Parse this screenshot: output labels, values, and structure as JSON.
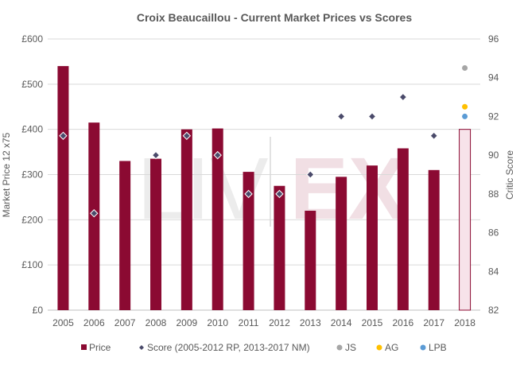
{
  "watermark": "LIV|EX",
  "chart_data": {
    "type": "bar",
    "title": "Croix Beaucaillou - Current Market Prices vs Scores",
    "ylabel": "Market Price 12 x75",
    "y2label": "Critic Score",
    "categories": [
      "2005",
      "2006",
      "2007",
      "2008",
      "2009",
      "2010",
      "2011",
      "2012",
      "2013",
      "2014",
      "2015",
      "2016",
      "2017",
      "2018"
    ],
    "ylim": [
      0,
      600
    ],
    "y2lim": [
      82,
      96
    ],
    "yticks": [
      0,
      100,
      200,
      300,
      400,
      500,
      600
    ],
    "ytick_labels": [
      "£0",
      "£100",
      "£200",
      "£300",
      "£400",
      "£500",
      "£600"
    ],
    "y2ticks": [
      82,
      84,
      86,
      88,
      90,
      92,
      94,
      96
    ],
    "ytick2_labels": [
      "82",
      "84",
      "86",
      "88",
      "90",
      "92",
      "94",
      "96"
    ],
    "grid": true,
    "legend_position": "bottom",
    "series": [
      {
        "name": "Price",
        "kind": "bar",
        "axis": "left",
        "color": "#8b0a32",
        "values": [
          540,
          415,
          330,
          335,
          400,
          402,
          306,
          275,
          220,
          295,
          320,
          358,
          310,
          null
        ]
      },
      {
        "name": "Price (2018)",
        "kind": "bar-outline",
        "axis": "left",
        "color": "#8b0a32",
        "fill": "#f7e3ea",
        "values": [
          null,
          null,
          null,
          null,
          null,
          null,
          null,
          null,
          null,
          null,
          null,
          null,
          null,
          400
        ]
      },
      {
        "name": "Score (2005-2012 RP, 2013-2017 NM)",
        "kind": "diamond",
        "axis": "right",
        "color": "#4a4a6a",
        "values": [
          91,
          87,
          null,
          90,
          91,
          90,
          88,
          88,
          89,
          92,
          92,
          93,
          91,
          null
        ]
      },
      {
        "name": "JS",
        "kind": "dot",
        "axis": "right",
        "color": "#a6a6a6",
        "values": [
          null,
          null,
          null,
          null,
          null,
          null,
          null,
          null,
          null,
          null,
          null,
          null,
          null,
          94.5
        ]
      },
      {
        "name": "AG",
        "kind": "dot",
        "axis": "right",
        "color": "#ffc000",
        "values": [
          null,
          null,
          null,
          null,
          null,
          null,
          null,
          null,
          null,
          null,
          null,
          null,
          null,
          92.5
        ]
      },
      {
        "name": "LPB",
        "kind": "dot",
        "axis": "right",
        "color": "#5b9bd5",
        "values": [
          null,
          null,
          null,
          null,
          null,
          null,
          null,
          null,
          null,
          null,
          null,
          null,
          null,
          92
        ]
      }
    ],
    "legend": [
      {
        "label": "Price",
        "marker": "square",
        "color": "#8b0a32"
      },
      {
        "label": "Score (2005-2012 RP, 2013-2017 NM)",
        "marker": "diamond",
        "color": "#4a4a6a"
      },
      {
        "label": "JS",
        "marker": "circle",
        "color": "#a6a6a6"
      },
      {
        "label": "AG",
        "marker": "circle",
        "color": "#ffc000"
      },
      {
        "label": "LPB",
        "marker": "circle",
        "color": "#5b9bd5"
      }
    ]
  }
}
